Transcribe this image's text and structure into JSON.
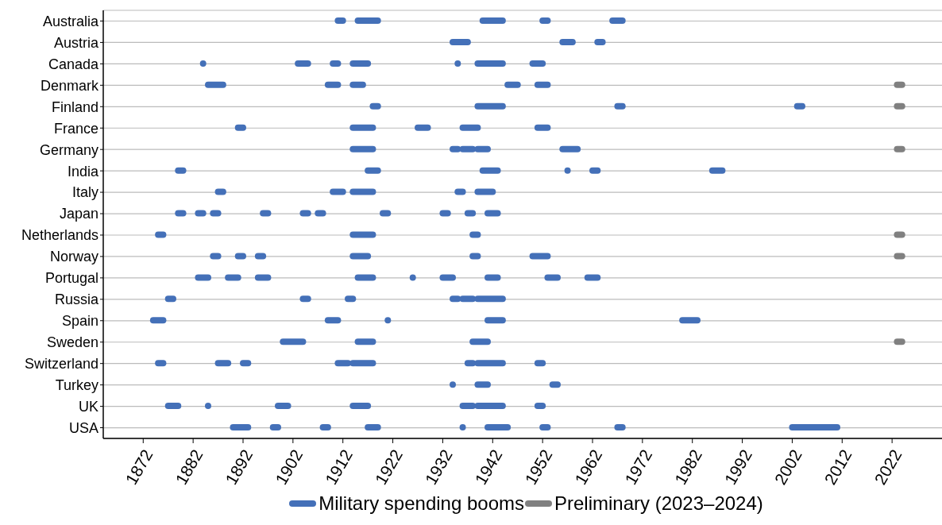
{
  "chart_data": {
    "type": "bar",
    "orientation": "horizontal",
    "categories": [
      "Australia",
      "Austria",
      "Canada",
      "Denmark",
      "Finland",
      "France",
      "Germany",
      "India",
      "Italy",
      "Japan",
      "Netherlands",
      "Norway",
      "Portugal",
      "Russia",
      "Spain",
      "Sweden",
      "Switzerland",
      "Turkey",
      "UK",
      "USA"
    ],
    "xlim": [
      1864,
      2032
    ],
    "xticks": [
      1872,
      1882,
      1892,
      1902,
      1912,
      1922,
      1932,
      1942,
      1952,
      1962,
      1972,
      1982,
      1992,
      2002,
      2012,
      2022
    ],
    "grid": "y",
    "legend": "bottom",
    "series": [
      {
        "name": "Military spending booms",
        "color": "#4470b8",
        "base": [
          1911,
          1934,
          null,
          1885,
          1918,
          1891,
          1914,
          1879,
          1887,
          1879,
          1875,
          1886,
          1883,
          1877,
          1874,
          1900,
          1875,
          null,
          1877,
          1890
        ],
        "values": [
          1,
          3,
          null,
          3,
          1,
          1,
          4,
          1,
          1,
          1,
          1,
          1,
          2,
          1,
          2,
          4,
          1,
          null,
          2,
          3
        ]
      },
      {
        "color": "#4470b8",
        "base": [
          1915,
          1956,
          1903,
          1909,
          1939,
          1914,
          1934,
          1917,
          1910,
          1883,
          1914,
          1891,
          1889,
          1904,
          1909,
          1915,
          1887,
          1939,
          null,
          1898
        ],
        "values": [
          4,
          2,
          2,
          2,
          5,
          4,
          1,
          2,
          2,
          1,
          4,
          1,
          2,
          1,
          2,
          3,
          2,
          2,
          null,
          1
        ]
      },
      {
        "color": "#4470b8",
        "base": [
          1940,
          1963,
          1910,
          1914,
          1967,
          1927,
          1936,
          1940,
          1914,
          1886,
          1938,
          1895,
          1895,
          1913,
          null,
          1938,
          1892,
          1954,
          1899,
          1908
        ],
        "values": [
          4,
          1,
          1,
          2,
          1,
          2,
          2,
          3,
          4,
          1,
          1,
          1,
          2,
          1,
          null,
          3,
          1,
          1,
          2,
          1
        ]
      },
      {
        "color": "#4470b8",
        "base": [
          1952,
          null,
          1914,
          1945,
          2003,
          1936,
          1939,
          null,
          1935,
          1896,
          null,
          1914,
          1915,
          1934,
          1941,
          null,
          1911,
          null,
          1914,
          1917
        ],
        "values": [
          1,
          null,
          3,
          2,
          1,
          3,
          2,
          null,
          1,
          1,
          null,
          3,
          3,
          1,
          3,
          null,
          2,
          null,
          3,
          2
        ]
      },
      {
        "color": "#4470b8",
        "base": [
          1966,
          null,
          null,
          1951,
          null,
          1951,
          1956,
          1962,
          1939,
          1904,
          null,
          1938,
          null,
          1936,
          1980,
          null,
          1914,
          null,
          1936,
          null
        ],
        "values": [
          2,
          null,
          null,
          2,
          null,
          2,
          3,
          1,
          3,
          1,
          null,
          1,
          null,
          2,
          3,
          null,
          4,
          null,
          2,
          null
        ]
      },
      {
        "color": "#4470b8",
        "base": [
          null,
          null,
          1939,
          null,
          null,
          null,
          null,
          1986,
          null,
          1907,
          null,
          1950,
          1932,
          1939,
          null,
          null,
          1937,
          null,
          1939,
          1941
        ],
        "values": [
          null,
          null,
          5,
          null,
          null,
          null,
          null,
          2,
          null,
          1,
          null,
          3,
          2,
          5,
          null,
          null,
          1,
          null,
          5,
          4
        ]
      },
      {
        "color": "#4470b8",
        "base": [
          null,
          null,
          1950,
          null,
          null,
          null,
          null,
          null,
          null,
          1920,
          null,
          null,
          1941,
          null,
          null,
          null,
          1939,
          null,
          1951,
          1952
        ],
        "values": [
          null,
          null,
          2,
          null,
          null,
          null,
          null,
          null,
          null,
          1,
          null,
          null,
          2,
          null,
          null,
          null,
          5,
          null,
          1,
          1
        ]
      },
      {
        "color": "#4470b8",
        "base": [
          null,
          null,
          null,
          null,
          null,
          null,
          null,
          null,
          null,
          1932,
          null,
          null,
          1953,
          null,
          null,
          null,
          1951,
          null,
          null,
          1967
        ],
        "values": [
          null,
          null,
          null,
          null,
          null,
          null,
          null,
          null,
          null,
          1,
          null,
          null,
          2,
          null,
          null,
          null,
          1,
          null,
          null,
          1
        ]
      },
      {
        "color": "#4470b8",
        "base": [
          null,
          null,
          null,
          null,
          null,
          null,
          null,
          null,
          null,
          1937,
          null,
          null,
          1961,
          null,
          null,
          null,
          null,
          null,
          null,
          2002
        ],
        "values": [
          null,
          null,
          null,
          null,
          null,
          null,
          null,
          null,
          null,
          1,
          null,
          null,
          2,
          null,
          null,
          null,
          null,
          null,
          null,
          9
        ]
      },
      {
        "color": "#4470b8",
        "base": [
          null,
          null,
          null,
          null,
          null,
          null,
          null,
          null,
          null,
          1941,
          null,
          null,
          null,
          null,
          null,
          null,
          null,
          null,
          null,
          null
        ],
        "values": [
          null,
          null,
          null,
          null,
          null,
          null,
          null,
          null,
          null,
          2,
          null,
          null,
          null,
          null,
          null,
          null,
          null,
          null,
          null,
          null
        ]
      },
      {
        "type": "scatter",
        "color": "#4470b8",
        "x": [
          "Canada",
          "Canada",
          "India",
          "Portugal",
          "Spain",
          "Turkey",
          "UK",
          "USA"
        ],
        "values": [
          1884,
          1935,
          1957,
          1926,
          1921,
          1934,
          1885,
          1936
        ]
      },
      {
        "name": "Preliminary (2023–2024)",
        "color": "#808080",
        "base": [
          null,
          null,
          null,
          2023,
          2023,
          null,
          2023,
          null,
          null,
          null,
          2023,
          2023,
          null,
          null,
          null,
          2023,
          null,
          null,
          null,
          null
        ],
        "values": [
          null,
          null,
          null,
          1,
          1,
          null,
          1,
          null,
          null,
          null,
          1,
          1,
          null,
          null,
          null,
          1,
          null,
          null,
          null,
          null
        ]
      }
    ]
  }
}
